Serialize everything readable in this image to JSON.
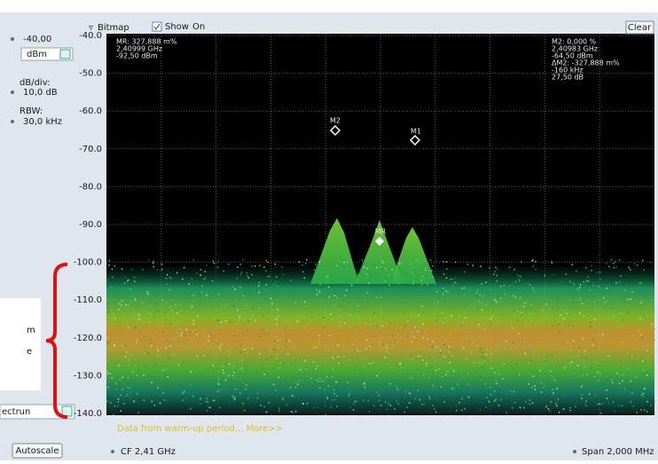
{
  "left_panel": {
    "ref_level": "-40,00",
    "unit": "dBm",
    "scale_label": "dB/div:",
    "scale_value": "10,0 dB",
    "rbw_label": "RBW:",
    "rbw_value": "30,0 kHz",
    "trace_select": "ectrun",
    "autoscale": "Autoscale"
  },
  "toolbar": {
    "trace": "Bitmap",
    "show": "Show",
    "state": "On",
    "clear": "Clear"
  },
  "y_axis": {
    "labels": [
      "-40.0",
      "-50.0",
      "-60.0",
      "-70.0",
      "-80.0",
      "-90.0",
      "-100.0",
      "-110.0",
      "-120.0",
      "-130.0",
      "-140.0"
    ]
  },
  "readout_left": [
    "MR: 327,888 m%",
    "2,40999 GHz",
    "-92,50 dBm"
  ],
  "readout_right": [
    "M2: 0,000 %",
    "2,40983 GHz",
    "-64,50 dBm",
    "ΔM2: -327,888 m%",
    "-160 kHz",
    "27,50 dB"
  ],
  "markers": {
    "m2": "M2",
    "m1": "M1",
    "mr": "MR"
  },
  "status": "Data from warm-up period... More>>",
  "footer": {
    "cf": "CF  2,41 GHz",
    "span": "Span  2,000 MHz"
  },
  "overlay": {
    "line1": "m",
    "line2": "e"
  }
}
